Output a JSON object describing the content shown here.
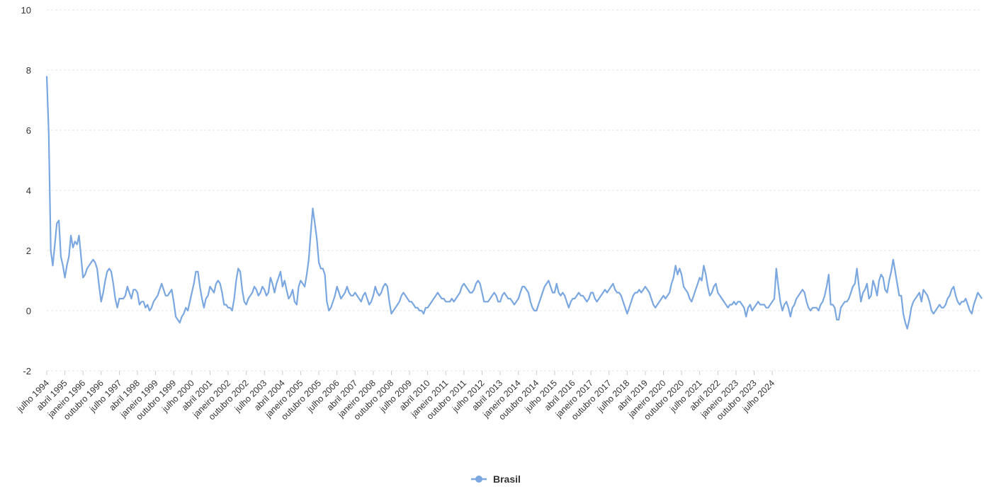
{
  "chart_data": {
    "type": "line",
    "title": "",
    "xlabel": "",
    "ylabel": "",
    "ylim": [
      -2,
      10
    ],
    "yticks": [
      -2,
      0,
      2,
      4,
      6,
      8,
      10
    ],
    "grid": true,
    "legend": {
      "position": "bottom-center",
      "entries": [
        "Brasil"
      ]
    },
    "colors": {
      "series": "#7aa7df",
      "grid": "#e6e6e6",
      "text": "#333333"
    },
    "x_tick_labels": [
      "julho 1994",
      "abril 1995",
      "janeiro 1996",
      "outubro 1996",
      "julho 1997",
      "abril 1998",
      "janeiro 1999",
      "outubro 1999",
      "julho 2000",
      "abril 2001",
      "janeiro 2002",
      "outubro 2002",
      "julho 2003",
      "abril 2004",
      "janeiro 2005",
      "outubro 2005",
      "julho 2006",
      "abril 2007",
      "janeiro 2008",
      "outubro 2008",
      "julho 2009",
      "abril 2010",
      "janeiro 2011",
      "outubro 2011",
      "julho 2012",
      "abril 2013",
      "janeiro 2014",
      "outubro 2014",
      "julho 2015",
      "abril 2016",
      "janeiro 2017",
      "outubro 2017",
      "julho 2018",
      "abril 2019",
      "janeiro 2020",
      "outubro 2020",
      "julho 2021",
      "abril 2022",
      "janeiro 2023",
      "outubro 2023",
      "julho 2024"
    ],
    "x_start": "julho 1994",
    "series": [
      {
        "name": "Brasil",
        "values": [
          7.8,
          5.9,
          2.0,
          1.5,
          2.2,
          2.9,
          3.0,
          1.8,
          1.5,
          1.1,
          1.5,
          1.8,
          2.5,
          2.1,
          2.3,
          2.2,
          2.5,
          1.8,
          1.1,
          1.2,
          1.4,
          1.5,
          1.6,
          1.7,
          1.6,
          1.4,
          0.8,
          0.3,
          0.6,
          1.0,
          1.3,
          1.4,
          1.3,
          0.9,
          0.4,
          0.1,
          0.4,
          0.4,
          0.4,
          0.5,
          0.8,
          0.6,
          0.4,
          0.7,
          0.7,
          0.6,
          0.2,
          0.3,
          0.3,
          0.1,
          0.2,
          0.0,
          0.1,
          0.3,
          0.4,
          0.5,
          0.7,
          0.9,
          0.7,
          0.5,
          0.5,
          0.6,
          0.7,
          0.3,
          -0.2,
          -0.3,
          -0.4,
          -0.2,
          -0.1,
          0.1,
          0.0,
          0.3,
          0.6,
          0.9,
          1.3,
          1.3,
          0.8,
          0.4,
          0.1,
          0.4,
          0.5,
          0.8,
          0.7,
          0.6,
          0.9,
          1.0,
          0.9,
          0.6,
          0.2,
          0.2,
          0.1,
          0.1,
          0.0,
          0.4,
          1.0,
          1.4,
          1.3,
          0.7,
          0.3,
          0.2,
          0.4,
          0.5,
          0.6,
          0.8,
          0.7,
          0.5,
          0.6,
          0.8,
          0.7,
          0.5,
          0.6,
          1.1,
          0.9,
          0.6,
          0.9,
          1.1,
          1.3,
          0.8,
          1.0,
          0.7,
          0.4,
          0.5,
          0.7,
          0.3,
          0.2,
          0.8,
          1.0,
          0.9,
          0.8,
          1.2,
          1.7,
          2.6,
          3.4,
          2.9,
          2.4,
          1.6,
          1.4,
          1.4,
          1.2,
          0.3,
          0.0,
          0.1,
          0.3,
          0.5,
          0.8,
          0.6,
          0.4,
          0.5,
          0.6,
          0.8,
          0.6,
          0.5,
          0.5,
          0.6,
          0.5,
          0.4,
          0.3,
          0.5,
          0.6,
          0.4,
          0.2,
          0.3,
          0.5,
          0.8,
          0.6,
          0.5,
          0.6,
          0.8,
          0.9,
          0.8,
          0.3,
          -0.1,
          0.0,
          0.1,
          0.2,
          0.3,
          0.5,
          0.6,
          0.5,
          0.4,
          0.3,
          0.3,
          0.2,
          0.1,
          0.1,
          0.0,
          0.0,
          -0.1,
          0.1,
          0.1,
          0.2,
          0.3,
          0.4,
          0.5,
          0.6,
          0.5,
          0.4,
          0.4,
          0.3,
          0.3,
          0.3,
          0.4,
          0.3,
          0.4,
          0.5,
          0.6,
          0.8,
          0.9,
          0.8,
          0.7,
          0.6,
          0.6,
          0.7,
          0.9,
          1.0,
          0.9,
          0.6,
          0.3,
          0.3,
          0.3,
          0.4,
          0.5,
          0.6,
          0.5,
          0.3,
          0.3,
          0.5,
          0.6,
          0.5,
          0.4,
          0.4,
          0.3,
          0.2,
          0.3,
          0.4,
          0.6,
          0.8,
          0.8,
          0.7,
          0.6,
          0.3,
          0.1,
          0.0,
          0.0,
          0.2,
          0.4,
          0.6,
          0.8,
          0.9,
          1.0,
          0.8,
          0.6,
          0.6,
          0.9,
          0.6,
          0.5,
          0.6,
          0.5,
          0.3,
          0.1,
          0.3,
          0.4,
          0.4,
          0.5,
          0.6,
          0.5,
          0.5,
          0.4,
          0.3,
          0.4,
          0.6,
          0.6,
          0.4,
          0.3,
          0.4,
          0.5,
          0.6,
          0.7,
          0.6,
          0.7,
          0.8,
          0.9,
          0.7,
          0.6,
          0.6,
          0.5,
          0.3,
          0.1,
          -0.1,
          0.1,
          0.3,
          0.5,
          0.6,
          0.6,
          0.7,
          0.6,
          0.7,
          0.8,
          0.7,
          0.6,
          0.4,
          0.2,
          0.1,
          0.2,
          0.3,
          0.4,
          0.5,
          0.4,
          0.5,
          0.6,
          0.9,
          1.1,
          1.5,
          1.2,
          1.4,
          1.2,
          0.8,
          0.7,
          0.6,
          0.4,
          0.3,
          0.5,
          0.7,
          0.9,
          1.1,
          1.0,
          1.5,
          1.2,
          0.8,
          0.5,
          0.6,
          0.8,
          0.9,
          0.6,
          0.5,
          0.4,
          0.3,
          0.2,
          0.1,
          0.2,
          0.2,
          0.3,
          0.2,
          0.3,
          0.3,
          0.2,
          0.1,
          -0.2,
          0.1,
          0.2,
          0.0,
          0.1,
          0.2,
          0.3,
          0.2,
          0.2,
          0.2,
          0.1,
          0.1,
          0.2,
          0.3,
          0.4,
          1.4,
          0.8,
          0.3,
          0.0,
          0.2,
          0.3,
          0.1,
          -0.2,
          0.1,
          0.2,
          0.4,
          0.5,
          0.6,
          0.7,
          0.6,
          0.3,
          0.1,
          0.0,
          0.1,
          0.1,
          0.1,
          0.0,
          0.2,
          0.3,
          0.5,
          0.8,
          1.2,
          0.2,
          0.2,
          0.1,
          -0.3,
          -0.3,
          0.1,
          0.2,
          0.3,
          0.3,
          0.4,
          0.6,
          0.8,
          0.9,
          1.4,
          0.8,
          0.3,
          0.6,
          0.7,
          0.9,
          0.4,
          0.5,
          1.0,
          0.8,
          0.5,
          1.0,
          1.2,
          1.1,
          0.7,
          0.6,
          1.0,
          1.3,
          1.7,
          1.3,
          0.9,
          0.5,
          0.5,
          -0.1,
          -0.4,
          -0.6,
          -0.3,
          0.1,
          0.3,
          0.4,
          0.5,
          0.6,
          0.3,
          0.7,
          0.6,
          0.5,
          0.3,
          0.0,
          -0.1,
          0.0,
          0.1,
          0.2,
          0.1,
          0.1,
          0.2,
          0.4,
          0.5,
          0.7,
          0.8,
          0.5,
          0.3,
          0.2,
          0.3,
          0.3,
          0.4,
          0.2,
          0.0,
          -0.1,
          0.2,
          0.4,
          0.6,
          0.5,
          0.4
        ]
      }
    ]
  }
}
